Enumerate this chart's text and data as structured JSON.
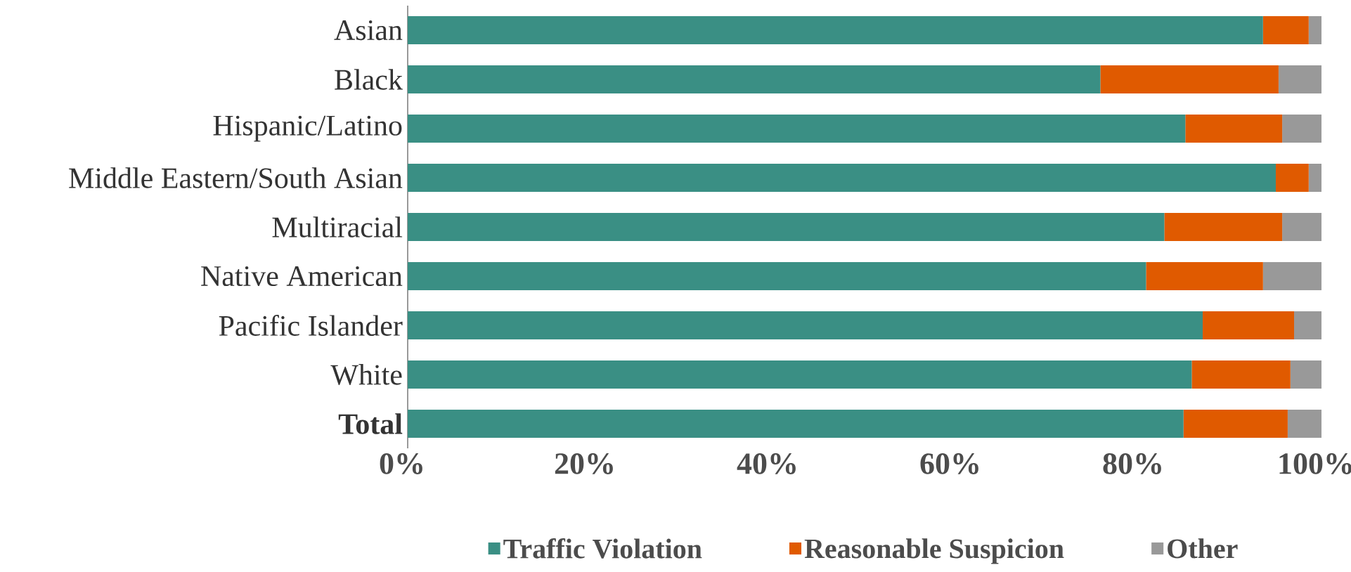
{
  "chart_data": {
    "type": "bar",
    "orientation": "horizontal",
    "stacked": true,
    "legend": "bottom",
    "grid": false,
    "categories": [
      "Asian",
      "Black",
      "Hispanic/Latino",
      "Middle Eastern/South Asian",
      "Multiracial",
      "Native American",
      "Pacific Islander",
      "White",
      "**Total**"
    ],
    "xlim": [
      0,
      100
    ],
    "xticks": [
      {
        "value": 0,
        "label": "0%"
      },
      {
        "value": 20,
        "label": "20%"
      },
      {
        "value": 40,
        "label": "40%"
      },
      {
        "value": 60,
        "label": "60%"
      },
      {
        "value": 80,
        "label": "80%"
      },
      {
        "value": 100,
        "label": "100%"
      }
    ],
    "series": [
      {
        "name": "Traffic Violation",
        "color": "#3a8f84",
        "values": [
          93.6,
          75.8,
          85.1,
          95.0,
          82.8,
          80.8,
          87.0,
          85.8,
          84.9
        ]
      },
      {
        "name": "Reasonable Suspicion",
        "color": "#e05a00",
        "values": [
          5.0,
          19.5,
          10.6,
          3.6,
          12.9,
          12.8,
          10.0,
          10.8,
          11.4
        ]
      },
      {
        "name": "Other",
        "color": "#999999",
        "values": [
          1.4,
          4.7,
          4.3,
          1.4,
          4.3,
          6.4,
          3.0,
          3.4,
          3.7
        ]
      }
    ]
  }
}
